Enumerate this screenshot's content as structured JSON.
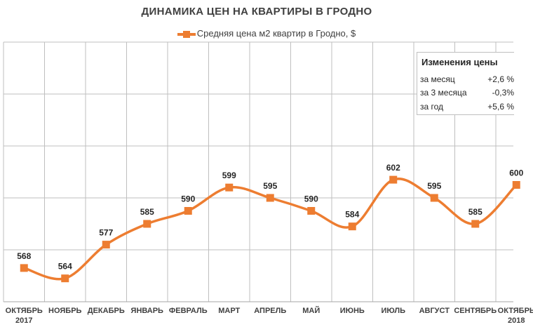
{
  "title": "ДИНАМИКА ЦЕН НА КВАРТИРЫ В ГРОДНО",
  "colors": {
    "series": "#ed7d31",
    "grid": "#bfbfbf"
  },
  "chart_data": {
    "type": "line",
    "title": "ДИНАМИКА ЦЕН НА КВАРТИРЫ В ГРОДНО",
    "categories": [
      "ОКТЯБРЬ",
      "НОЯБРЬ",
      "ДЕКАБРЬ",
      "ЯНВАРЬ",
      "ФЕВРАЛЬ",
      "МАРТ",
      "АПРЕЛЬ",
      "МАЙ",
      "ИЮНЬ",
      "ИЮЛЬ",
      "АВГУСТ",
      "СЕНТЯБРЬ",
      "ОКТЯБРЬ"
    ],
    "year_labels": [
      "2017",
      "",
      "",
      "",
      "",
      "",
      "",
      "",
      "",
      "",
      "",
      "",
      "2018"
    ],
    "series": [
      {
        "name": "Средняя цена м2 квартир в Гродно, $",
        "values": [
          568,
          564,
          577,
          585,
          590,
          599,
          595,
          590,
          584,
          602,
          595,
          585,
          600
        ]
      }
    ],
    "data_labels": [
      "568",
      "564",
      "577",
      "585",
      "590",
      "599",
      "595",
      "590",
      "584",
      "602",
      "595",
      "585",
      "600"
    ],
    "ylim": [
      555,
      655
    ],
    "grid": true,
    "legend_position": "top"
  },
  "info_box": {
    "title": "Изменения цены",
    "rows": [
      {
        "label": "за месяц",
        "value": "+2,6 %"
      },
      {
        "label": "за 3 месяца",
        "value": "-0,3%"
      },
      {
        "label": "за год",
        "value": "+5,6 %"
      }
    ]
  }
}
